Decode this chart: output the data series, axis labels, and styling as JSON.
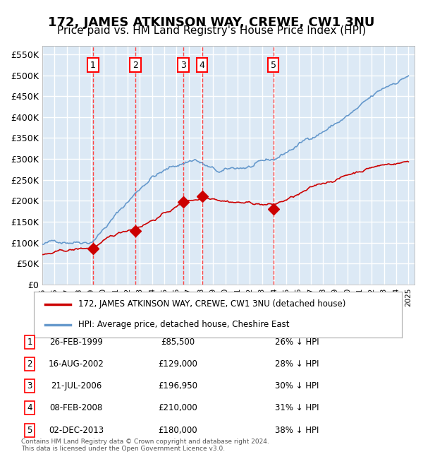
{
  "title": "172, JAMES ATKINSON WAY, CREWE, CW1 3NU",
  "subtitle": "Price paid vs. HM Land Registry's House Price Index (HPI)",
  "title_fontsize": 13,
  "subtitle_fontsize": 11,
  "ylim": [
    0,
    570000
  ],
  "yticks": [
    0,
    50000,
    100000,
    150000,
    200000,
    250000,
    300000,
    350000,
    400000,
    450000,
    500000,
    550000
  ],
  "ytick_labels": [
    "£0",
    "£50K",
    "£100K",
    "£150K",
    "£200K",
    "£250K",
    "£300K",
    "£350K",
    "£400K",
    "£450K",
    "£500K",
    "£550K"
  ],
  "background_color": "#dce9f5",
  "plot_bg_color": "#dce9f5",
  "grid_color": "#ffffff",
  "sale_color": "#cc0000",
  "hpi_color": "#6699cc",
  "sale_marker_color": "#cc0000",
  "vline_color": "#ff4444",
  "legend_box_color": "#ffffff",
  "sales": [
    {
      "label": "1",
      "date_num": 1999.15,
      "price": 85500
    },
    {
      "label": "2",
      "date_num": 2002.62,
      "price": 129000
    },
    {
      "label": "3",
      "date_num": 2006.55,
      "price": 196950
    },
    {
      "label": "4",
      "date_num": 2008.1,
      "price": 210000
    },
    {
      "label": "5",
      "date_num": 2013.92,
      "price": 180000
    }
  ],
  "table_rows": [
    {
      "num": "1",
      "date": "26-FEB-1999",
      "price": "£85,500",
      "pct": "26% ↓ HPI"
    },
    {
      "num": "2",
      "date": "16-AUG-2002",
      "price": "£129,000",
      "pct": "28% ↓ HPI"
    },
    {
      "num": "3",
      "date": "21-JUL-2006",
      "price": "£196,950",
      "pct": "30% ↓ HPI"
    },
    {
      "num": "4",
      "date": "08-FEB-2008",
      "price": "£210,000",
      "pct": "31% ↓ HPI"
    },
    {
      "num": "5",
      "date": "02-DEC-2013",
      "price": "£180,000",
      "pct": "38% ↓ HPI"
    }
  ],
  "legend_line1": "172, JAMES ATKINSON WAY, CREWE, CW1 3NU (detached house)",
  "legend_line2": "HPI: Average price, detached house, Cheshire East",
  "footer_line1": "Contains HM Land Registry data © Crown copyright and database right 2024.",
  "footer_line2": "This data is licensed under the Open Government Licence v3.0."
}
